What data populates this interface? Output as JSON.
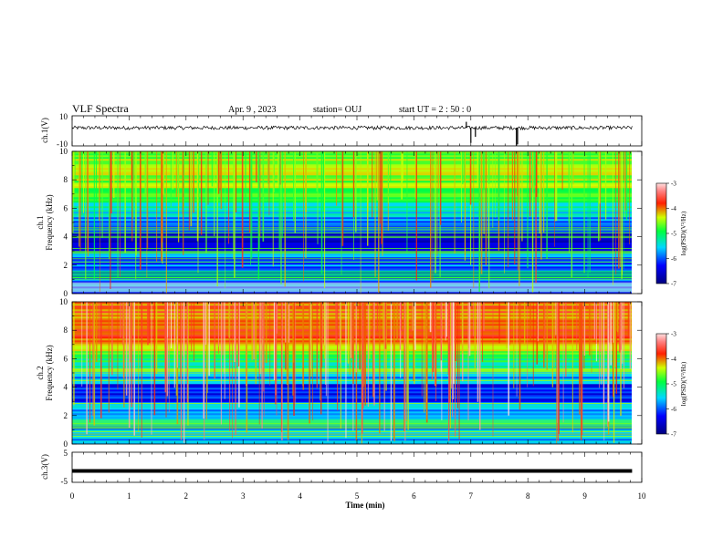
{
  "header": {
    "title": "VLF Spectra",
    "date": "Apr. 9 , 2023",
    "station": "station= OUJ",
    "start": "start UT = 2 : 50 : 0"
  },
  "chart_data": [
    {
      "type": "line",
      "id": "ch1-waveform",
      "ylabel": "ch.1(V)",
      "ylim": [
        -10,
        10
      ],
      "yticks": [
        "10",
        "-10"
      ],
      "xlim": [
        0,
        10
      ],
      "x_end_min": 9.83,
      "baseline_v": 2,
      "noise_v": 1.2,
      "spikes": [
        {
          "t_min": 6.92,
          "v": 6
        },
        {
          "t_min": 7.0,
          "v": -8
        },
        {
          "t_min": 7.08,
          "v": -4
        },
        {
          "t_min": 7.8,
          "v": -10
        },
        {
          "t_min": 7.82,
          "v": -9
        }
      ]
    },
    {
      "type": "heatmap",
      "id": "ch1-spectrogram",
      "ylabel_top": "ch.1",
      "ylabel": "Frequency (kHz)",
      "ylim": [
        0,
        10
      ],
      "yticks": [
        "0",
        "2",
        "4",
        "6",
        "8",
        "10"
      ],
      "xlim": [
        0,
        10
      ],
      "x_end_min": 9.83,
      "colorbar": {
        "label": "log(PSD)(V²/Hz)",
        "range": [
          -7,
          -3
        ],
        "ticks": [
          "-3",
          "-4",
          "-5",
          "-6",
          "-7"
        ]
      },
      "base_level": -5.9,
      "high_freq_level": -4.6,
      "band_khz": [
        1.1,
        1.6
      ],
      "band_level": -4.9,
      "low_line_khz": [
        0.1,
        0.8
      ],
      "low_line_level": -3.0,
      "impulse_density": 0.55
    },
    {
      "type": "heatmap",
      "id": "ch2-spectrogram",
      "ylabel_top": "ch.2",
      "ylabel": "Frequency (kHz)",
      "ylim": [
        0,
        10
      ],
      "yticks": [
        "0",
        "2",
        "4",
        "6",
        "8",
        "10"
      ],
      "xlim": [
        0,
        10
      ],
      "x_end_min": 9.83,
      "colorbar": {
        "label": "log(PSD)(V²/Hz)",
        "range": [
          -7,
          -3
        ],
        "ticks": [
          "-3",
          "-4",
          "-5",
          "-6",
          "-7"
        ]
      },
      "base_level": -5.7,
      "high_freq_level": -3.9,
      "band_khz": [
        1.1,
        1.7
      ],
      "band_level": -4.7,
      "low_line_khz": [
        0.0,
        0.0
      ],
      "low_line_level": -5.5,
      "impulse_density": 0.75
    },
    {
      "type": "line",
      "id": "ch3-waveform",
      "ylabel": "ch.3(V)",
      "ylim": [
        -5,
        5
      ],
      "yticks": [
        "5",
        "-5"
      ],
      "xlim": [
        0,
        10
      ],
      "x_end_min": 9.83,
      "baseline_v": -1.2,
      "noise_v": 0.0,
      "spikes": []
    }
  ],
  "xaxis": {
    "label": "Time (min)",
    "ticks": [
      "0",
      "1",
      "2",
      "3",
      "4",
      "5",
      "6",
      "7",
      "8",
      "9",
      "10"
    ]
  }
}
